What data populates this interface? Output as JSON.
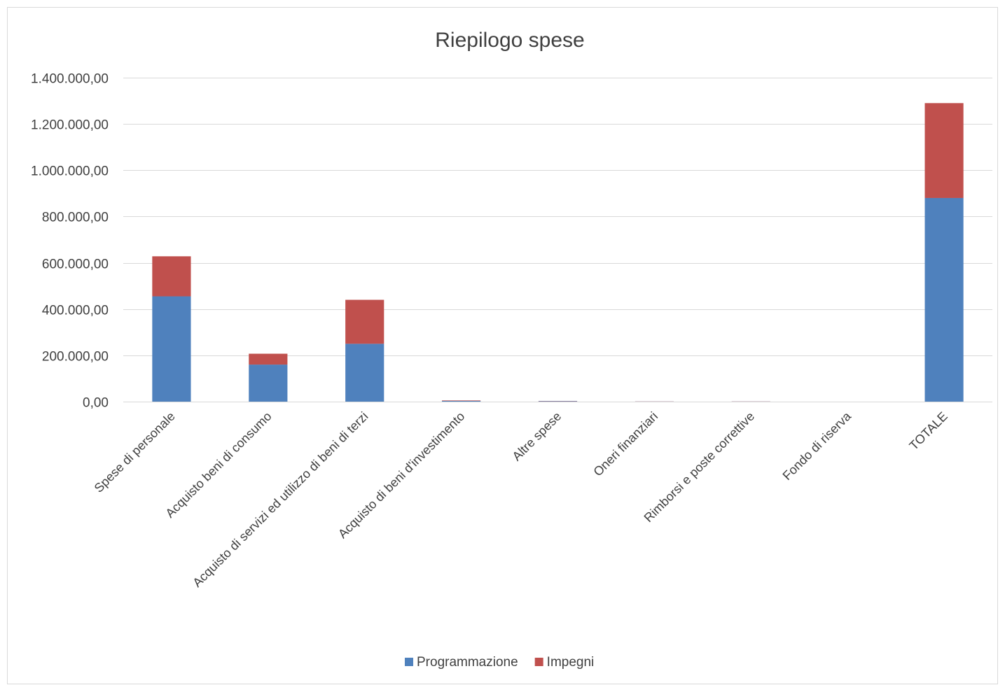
{
  "chart_data": {
    "type": "bar",
    "stacked": true,
    "title": "Riepilogo spese",
    "xlabel": "",
    "ylabel": "",
    "ylim": [
      0,
      1400000
    ],
    "yticks": [
      0,
      200000,
      400000,
      600000,
      800000,
      1000000,
      1200000,
      1400000
    ],
    "ytick_labels": [
      "0,00",
      "200.000,00",
      "400.000,00",
      "600.000,00",
      "800.000,00",
      "1.000.000,00",
      "1.200.000,00",
      "1.400.000,00"
    ],
    "grid": true,
    "legend_position": "bottom",
    "categories": [
      "Spese di personale",
      "Acquisto beni di consumo",
      "Acquisto di servizi ed utilizzo di beni di terzi",
      "Acquisto di beni d'investimento",
      "Altre spese",
      "Oneri finanziari",
      "Rimborsi e poste correttive",
      "Fondo di riserva",
      "TOTALE"
    ],
    "series": [
      {
        "name": "Programmazione",
        "color": "#4f81bd",
        "values": [
          455000,
          160000,
          250000,
          3000,
          2000,
          500,
          500,
          0,
          880000
        ]
      },
      {
        "name": "Impegni",
        "color": "#c0504d",
        "values": [
          173000,
          47000,
          190000,
          2000,
          1000,
          500,
          500,
          0,
          410000
        ]
      }
    ]
  }
}
